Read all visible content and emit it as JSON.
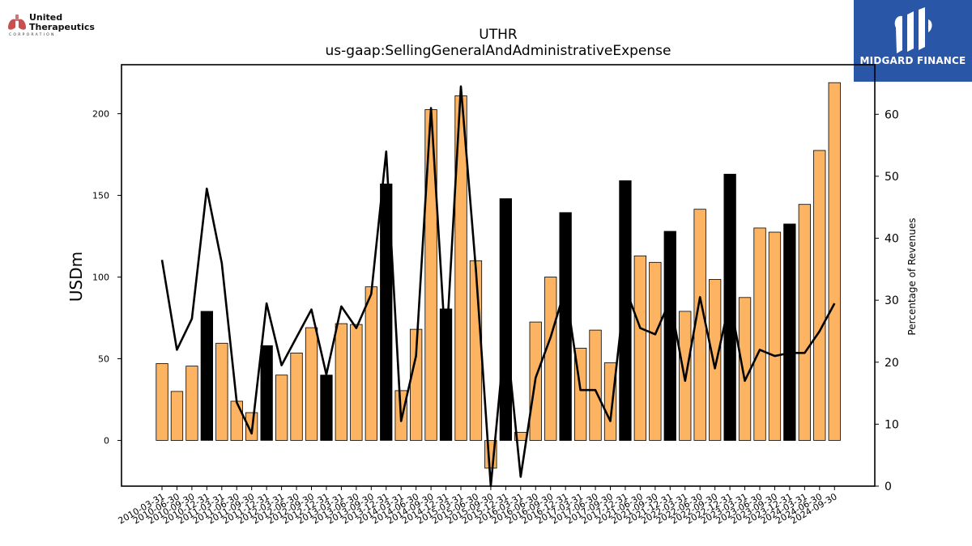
{
  "logos": {
    "left_text_line1": "United",
    "left_text_line2": "Therapeutics",
    "left_text_corp": "CORPORATION",
    "right_text": "MIDGARD FINANCE",
    "right_bg": "#2a56a8"
  },
  "chart_data": {
    "type": "bar",
    "title": "UTHR",
    "subtitle": "us-gaap:SellingGeneralAndAdministrativeExpense",
    "ylabel": "USDm",
    "ylabel_right": "Percentage of Revenues",
    "ylim": [
      -28,
      230
    ],
    "ylim_right": [
      0,
      68
    ],
    "yticks": [
      0,
      50,
      100,
      150,
      200
    ],
    "yticks_right": [
      0,
      10,
      20,
      30,
      40,
      50,
      60
    ],
    "grid": false,
    "colors": {
      "quarter": "#fdb462",
      "annual": "#000000",
      "line": "#000000"
    },
    "categories": [
      "2010-03-31",
      "2010-06-30",
      "2010-09-30",
      "2010-12-31",
      "2011-03-31",
      "2011-06-30",
      "2011-09-30",
      "2011-12-31",
      "2012-03-31",
      "2012-06-30",
      "2012-09-30",
      "2012-12-31",
      "2013-03-31",
      "2013-06-30",
      "2013-09-30",
      "2013-12-31",
      "2014-03-31",
      "2014-06-30",
      "2014-09-30",
      "2014-12-31",
      "2015-03-31",
      "2015-06-30",
      "2015-09-30",
      "2015-12-31",
      "2016-03-31",
      "2016-06-30",
      "2016-09-30",
      "2016-12-31",
      "2017-03-31",
      "2017-06-30",
      "2017-09-30",
      "2017-12-31",
      "2021-06-30",
      "2021-09-30",
      "2021-12-31",
      "2022-03-31",
      "2022-06-30",
      "2022-09-30",
      "2022-12-31",
      "2023-03-31",
      "2023-06-30",
      "2023-09-30",
      "2023-12-31",
      "2024-03-31",
      "2024-06-30",
      "2024-09-30"
    ],
    "series": [
      {
        "values": [
          47,
          30,
          45.5,
          79,
          59.5,
          24,
          17,
          58,
          40,
          53.5,
          69,
          40,
          71.5,
          71,
          94,
          157,
          30.5,
          68,
          202.5,
          80.5,
          211,
          110,
          -17,
          148,
          5,
          72.5,
          100,
          139.5,
          56.5,
          67.5,
          47.5,
          159,
          113,
          109,
          128,
          79,
          141.5,
          98.5,
          163,
          87.5,
          130,
          127.5,
          132.5,
          144.5,
          177.5,
          219
        ],
        "annual": [
          false,
          false,
          false,
          true,
          false,
          false,
          false,
          true,
          false,
          false,
          false,
          true,
          false,
          false,
          false,
          true,
          false,
          false,
          false,
          true,
          false,
          false,
          false,
          true,
          false,
          false,
          false,
          true,
          false,
          false,
          false,
          true,
          false,
          false,
          true,
          false,
          false,
          false,
          true,
          false,
          false,
          false,
          true,
          false,
          false,
          false
        ]
      },
      {
        "values": [
          36.5,
          22,
          27,
          48,
          36,
          13.5,
          8.5,
          29.5,
          19.5,
          24,
          28.5,
          18,
          29,
          25.5,
          31,
          54,
          10.5,
          21,
          61,
          21.5,
          64.5,
          35,
          0,
          25.5,
          1.5,
          17.5,
          24,
          32,
          15.5,
          15.5,
          10.5,
          32,
          25.5,
          24.5,
          30,
          17,
          30.5,
          19,
          30,
          17,
          22,
          21,
          21.5,
          21.5,
          25,
          29.5
        ]
      }
    ]
  }
}
